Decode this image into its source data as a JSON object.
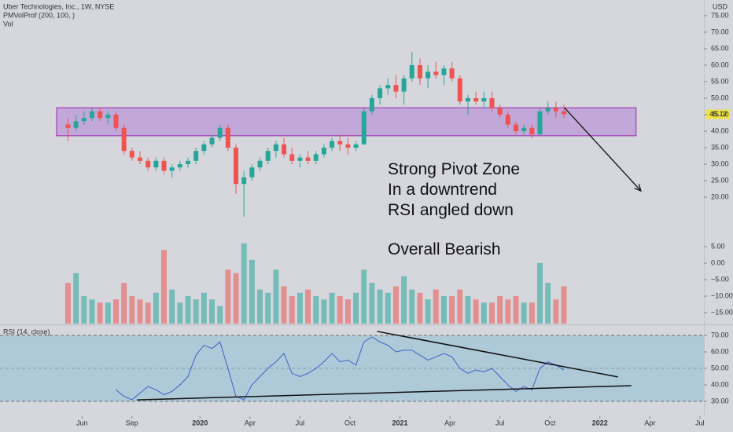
{
  "header": {
    "title": "Uber Technologies, Inc., 1W, NYSE",
    "indicator": "PMVolProf (200, 100, )",
    "volume": "Vol",
    "currency": "USD"
  },
  "chart_data": [
    {
      "type": "candlestick",
      "up_color": "#26a69a",
      "down_color": "#ef5350",
      "xlim": [
        2019.0,
        2022.52
      ],
      "ylim": [
        8.33,
        79.76
      ],
      "yticks": [
        {
          "value": 75,
          "label": "75.00"
        },
        {
          "value": 70,
          "label": "70.00"
        },
        {
          "value": 65,
          "label": "65.00"
        },
        {
          "value": 60,
          "label": "60.00"
        },
        {
          "value": 55,
          "label": "55.00"
        },
        {
          "value": 50,
          "label": "50.00"
        },
        {
          "value": 45,
          "label": "45.00"
        },
        {
          "value": 40,
          "label": "40.00"
        },
        {
          "value": 35,
          "label": "35.00"
        },
        {
          "value": 30,
          "label": "30.00"
        },
        {
          "value": 25,
          "label": "25.00"
        },
        {
          "value": 20,
          "label": "20.00"
        }
      ],
      "x": [
        2019.34,
        2019.38,
        2019.42,
        2019.46,
        2019.5,
        2019.54,
        2019.58,
        2019.62,
        2019.66,
        2019.7,
        2019.74,
        2019.78,
        2019.82,
        2019.86,
        2019.9,
        2019.94,
        2019.98,
        2020.02,
        2020.06,
        2020.1,
        2020.14,
        2020.18,
        2020.22,
        2020.26,
        2020.3,
        2020.34,
        2020.38,
        2020.42,
        2020.46,
        2020.5,
        2020.54,
        2020.58,
        2020.62,
        2020.66,
        2020.7,
        2020.74,
        2020.78,
        2020.82,
        2020.86,
        2020.9,
        2020.94,
        2020.98,
        2021.02,
        2021.06,
        2021.1,
        2021.14,
        2021.18,
        2021.22,
        2021.26,
        2021.3,
        2021.34,
        2021.38,
        2021.42,
        2021.46,
        2021.5,
        2021.54,
        2021.58,
        2021.62,
        2021.66,
        2021.7,
        2021.74,
        2021.78,
        2021.82
      ],
      "open": [
        42,
        41,
        43,
        44,
        46,
        44,
        45,
        41,
        34,
        32,
        31,
        29,
        31,
        28,
        29,
        30,
        31,
        34,
        36,
        38,
        41,
        35,
        24,
        26,
        29,
        31,
        34,
        36,
        33,
        31,
        32,
        31,
        33,
        35,
        37,
        36,
        35,
        36,
        46,
        50,
        53,
        54,
        52,
        56,
        60,
        56,
        58,
        57,
        59,
        56,
        49,
        50,
        49,
        50,
        47,
        45,
        42,
        40,
        41,
        39,
        46,
        47,
        46
      ],
      "high": [
        44,
        45,
        46,
        47,
        47,
        46,
        46,
        42,
        35,
        34,
        32,
        32,
        32,
        30,
        31,
        32,
        35,
        37,
        39,
        42,
        42,
        36,
        28,
        30,
        32,
        35,
        37,
        38,
        35,
        33,
        34,
        34,
        36,
        38,
        39,
        38,
        37,
        47,
        51,
        54,
        56,
        57,
        57,
        64,
        62,
        60,
        61,
        60,
        61,
        57,
        51,
        52,
        52,
        52,
        48,
        46,
        43,
        42,
        42,
        47,
        49,
        49,
        48
      ],
      "low": [
        37,
        40,
        42,
        43,
        43,
        42,
        40,
        33,
        31,
        30,
        28,
        28,
        27,
        26,
        28,
        29,
        30,
        33,
        35,
        37,
        34,
        21,
        14,
        25,
        28,
        30,
        32,
        32,
        30,
        29,
        30,
        30,
        32,
        34,
        34,
        33,
        34,
        36,
        45,
        48,
        51,
        50,
        48,
        55,
        54,
        53,
        56,
        54,
        55,
        48,
        45,
        48,
        47,
        46,
        44,
        41,
        39,
        39,
        38,
        39,
        45,
        44,
        44
      ],
      "close": [
        41,
        43,
        44,
        46,
        44,
        45,
        41,
        34,
        32,
        31,
        29,
        31,
        28,
        29,
        30,
        31,
        34,
        36,
        38,
        41,
        35,
        24,
        26,
        29,
        31,
        34,
        36,
        33,
        31,
        32,
        31,
        33,
        35,
        37,
        36,
        35,
        36,
        46,
        50,
        53,
        54,
        52,
        56,
        60,
        56,
        58,
        57,
        59,
        56,
        49,
        50,
        49,
        50,
        47,
        45,
        42,
        40,
        41,
        39,
        46,
        47,
        46,
        45.12
      ],
      "last_price": 45.12,
      "last_price_color": "#f0e442",
      "zone": {
        "x": [
          2019.283,
          2022.181
        ],
        "y": [
          38.6,
          47.1
        ],
        "color": "#b894d6",
        "border": "#9c27b0"
      },
      "arrow": {
        "x": [
          2021.823,
          2022.205
        ],
        "y": [
          47.1,
          21.9
        ]
      },
      "annotation": [
        "Strong Pivot Zone",
        "In a downtrend",
        "RSI angled down",
        "Overall Bearish"
      ]
    },
    {
      "type": "bar",
      "xlim": [
        2019.0,
        2022.52
      ],
      "ylim": [
        -18.33,
        8.33
      ],
      "yticks": [
        {
          "value": 5,
          "label": "5.00"
        },
        {
          "value": 0,
          "label": "0.00"
        },
        {
          "value": -5,
          "label": "−5.00"
        },
        {
          "value": -10,
          "label": "−10.00"
        },
        {
          "value": -15,
          "label": "−15.00"
        }
      ],
      "x": [
        2019.34,
        2019.38,
        2019.42,
        2019.46,
        2019.5,
        2019.54,
        2019.58,
        2019.62,
        2019.66,
        2019.7,
        2019.74,
        2019.78,
        2019.82,
        2019.86,
        2019.9,
        2019.94,
        2019.98,
        2020.02,
        2020.06,
        2020.1,
        2020.14,
        2020.18,
        2020.22,
        2020.26,
        2020.3,
        2020.34,
        2020.38,
        2020.42,
        2020.46,
        2020.5,
        2020.54,
        2020.58,
        2020.62,
        2020.66,
        2020.7,
        2020.74,
        2020.78,
        2020.82,
        2020.86,
        2020.9,
        2020.94,
        2020.98,
        2021.02,
        2021.06,
        2021.1,
        2021.14,
        2021.18,
        2021.22,
        2021.26,
        2021.3,
        2021.34,
        2021.38,
        2021.42,
        2021.46,
        2021.5,
        2021.54,
        2021.58,
        2021.62,
        2021.66,
        2021.7,
        2021.74,
        2021.78,
        2021.82
      ],
      "values": [
        -6,
        -3,
        -10,
        -11,
        -12,
        -12,
        -11,
        -6,
        -10,
        -11,
        -12,
        -9,
        4,
        -8,
        -12,
        -10,
        -11,
        -9,
        -11,
        -13,
        -2,
        -3,
        6,
        1,
        -8,
        -9,
        -2,
        -7,
        -10,
        -9,
        -8,
        -10,
        -11,
        -9,
        -10,
        -11,
        -9,
        -2,
        -6,
        -8,
        -9,
        -7,
        -4,
        -8,
        -9,
        -11,
        -8,
        -10,
        -10,
        -8,
        -10,
        -11,
        -12,
        -12,
        -10,
        -11,
        -10,
        -12,
        -12,
        0,
        -6,
        -11,
        -7
      ]
    },
    {
      "type": "line",
      "title": "RSI (14, close)",
      "color": "#3d63c9",
      "band_color": "#9cc3d4",
      "xlim": [
        2019.0,
        2022.52
      ],
      "ylim": [
        20.95,
        75.7
      ],
      "yticks": [
        {
          "value": 70,
          "label": "70.00"
        },
        {
          "value": 60,
          "label": "60.00"
        },
        {
          "value": 50,
          "label": "50.00"
        },
        {
          "value": 40,
          "label": "40.00"
        },
        {
          "value": 30,
          "label": "30.00"
        }
      ],
      "bands": [
        70,
        50,
        30
      ],
      "xticks": [
        {
          "value": 2019.41,
          "label": "Jun"
        },
        {
          "value": 2019.66,
          "label": "Sep"
        },
        {
          "value": 2020.0,
          "label": "2020"
        },
        {
          "value": 2020.25,
          "label": "Apr"
        },
        {
          "value": 2020.5,
          "label": "Jul"
        },
        {
          "value": 2020.75,
          "label": "Oct"
        },
        {
          "value": 2021.0,
          "label": "2021"
        },
        {
          "value": 2021.25,
          "label": "Apr"
        },
        {
          "value": 2021.5,
          "label": "Jul"
        },
        {
          "value": 2021.75,
          "label": "Oct"
        },
        {
          "value": 2022.0,
          "label": "2022"
        },
        {
          "value": 2022.25,
          "label": "Apr"
        },
        {
          "value": 2022.5,
          "label": "Jul"
        }
      ],
      "x": [
        2019.34,
        2019.38,
        2019.42,
        2019.46,
        2019.5,
        2019.54,
        2019.58,
        2019.62,
        2019.66,
        2019.7,
        2019.74,
        2019.78,
        2019.82,
        2019.86,
        2019.9,
        2019.94,
        2019.98,
        2020.02,
        2020.06,
        2020.1,
        2020.14,
        2020.18,
        2020.22,
        2020.26,
        2020.3,
        2020.34,
        2020.38,
        2020.42,
        2020.46,
        2020.5,
        2020.54,
        2020.58,
        2020.62,
        2020.66,
        2020.7,
        2020.74,
        2020.78,
        2020.82,
        2020.86,
        2020.9,
        2020.94,
        2020.98,
        2021.02,
        2021.06,
        2021.1,
        2021.14,
        2021.18,
        2021.22,
        2021.26,
        2021.3,
        2021.34,
        2021.38,
        2021.42,
        2021.46,
        2021.5,
        2021.54,
        2021.58,
        2021.62,
        2021.66,
        2021.7,
        2021.74,
        2021.78,
        2021.82
      ],
      "values": [
        null,
        null,
        null,
        null,
        null,
        null,
        37,
        33,
        31,
        35,
        39,
        37,
        34,
        36,
        40,
        45,
        58,
        64,
        62,
        66,
        50,
        33,
        31,
        40,
        45,
        50,
        54,
        59,
        47,
        45,
        47,
        50,
        54,
        59,
        54,
        55,
        52,
        66,
        69,
        66,
        64,
        60,
        61,
        61,
        58,
        55,
        57,
        59,
        57,
        50,
        47,
        49,
        48,
        50,
        45,
        40,
        36,
        39,
        37,
        50,
        54,
        52,
        49
      ],
      "trendlines": [
        {
          "x": [
            2020.886,
            2022.09
          ],
          "y": [
            72.4,
            44.8
          ]
        },
        {
          "x": [
            2019.685,
            2022.157
          ],
          "y": [
            30.9,
            39.5
          ]
        }
      ]
    }
  ]
}
